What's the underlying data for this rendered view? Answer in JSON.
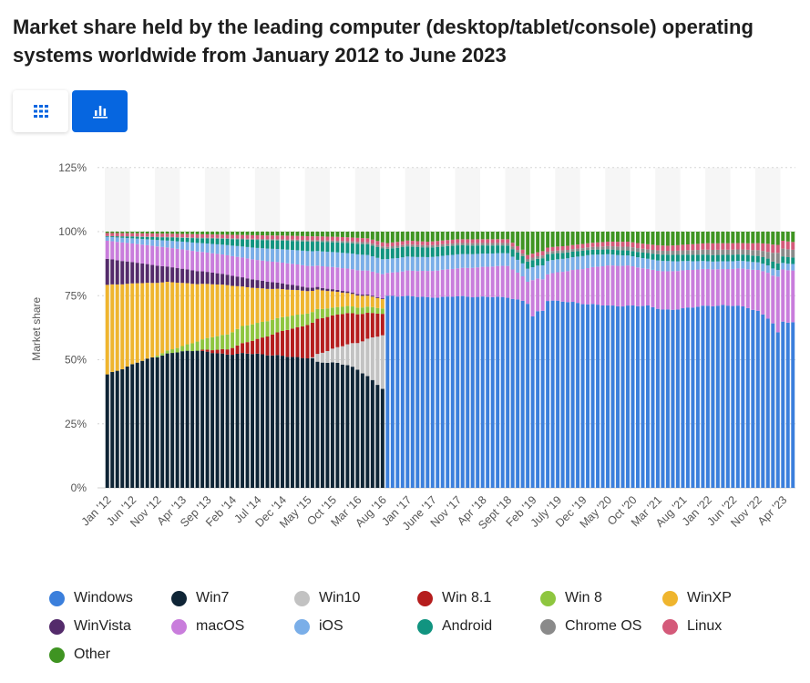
{
  "title": "Market share held by the leading computer (desktop/tablet/console) operating systems worldwide from January 2012 to June 2023",
  "toolbar": {
    "table_icon": "grid-icon",
    "chart_icon": "bar-chart-icon"
  },
  "colors": {
    "Windows": "#3b7fdc",
    "Win7": "#0f2536",
    "Win10": "#c2c2c2",
    "Win 8.1": "#b51d1d",
    "Win 8": "#8ec63f",
    "WinXP": "#efb52e",
    "WinVista": "#542b6b",
    "macOS": "#c97ddc",
    "iOS": "#7aaee8",
    "Android": "#119480",
    "Chrome OS": "#8a8a8a",
    "Linux": "#d45a7a",
    "Other": "#3f9422"
  },
  "chart_data": {
    "type": "bar",
    "stacked": true,
    "ylabel": "Market share",
    "ylim": [
      0,
      125
    ],
    "yticks": [
      "0%",
      "25%",
      "50%",
      "75%",
      "100%",
      "125%"
    ],
    "x_start": "Jan 2012",
    "x_end": "Jun 2023",
    "period": "monthly",
    "xtick_labels": [
      "Jan '12",
      "Jun '12",
      "Nov '12",
      "Apr '13",
      "Sep '13",
      "Feb '14",
      "Jul '14",
      "Dec '14",
      "May '15",
      "Oct '15",
      "Mar '16",
      "Aug '16",
      "Jan '17",
      "June '17",
      "Nov '17",
      "Apr '18",
      "Sept '18",
      "Feb '19",
      "July '19",
      "Dec '19",
      "May '20",
      "Oct '20",
      "Mar '21",
      "Aug '21",
      "Jan '22",
      "Jun '22",
      "Nov '22",
      "Apr '23"
    ],
    "legend_position": "bottom",
    "series": [
      {
        "name": "Windows",
        "points": [
          [
            55,
            0
          ],
          [
            56,
            75
          ],
          [
            60,
            75.5
          ],
          [
            70,
            75
          ],
          [
            80,
            75.5
          ],
          [
            84,
            71
          ],
          [
            85,
            66
          ],
          [
            86,
            68
          ],
          [
            87,
            64
          ],
          [
            88,
            71
          ],
          [
            93,
            72.5
          ],
          [
            96,
            71
          ],
          [
            100,
            73
          ],
          [
            103,
            72
          ],
          [
            108,
            72
          ],
          [
            111,
            68.5
          ],
          [
            116,
            70.5
          ],
          [
            121,
            70.5
          ],
          [
            126,
            71
          ],
          [
            130,
            69
          ],
          [
            133,
            60
          ],
          [
            134,
            58
          ],
          [
            135,
            64
          ],
          [
            137,
            64
          ]
        ]
      },
      {
        "name": "Win7",
        "points": [
          [
            0,
            43.5
          ],
          [
            6,
            49
          ],
          [
            12,
            52.5
          ],
          [
            18,
            53
          ],
          [
            24,
            51.5
          ],
          [
            30,
            50
          ],
          [
            36,
            49
          ],
          [
            42,
            48
          ],
          [
            46,
            48
          ],
          [
            48,
            47
          ],
          [
            52,
            42
          ],
          [
            55,
            37
          ],
          [
            56,
            0
          ],
          [
            137,
            0
          ]
        ]
      },
      {
        "name": "Win10",
        "points": [
          [
            0,
            0
          ],
          [
            40,
            0
          ],
          [
            41,
            0.3
          ],
          [
            42,
            3
          ],
          [
            46,
            6
          ],
          [
            50,
            10
          ],
          [
            55,
            20
          ],
          [
            56,
            0
          ],
          [
            137,
            0
          ]
        ]
      },
      {
        "name": "Win 8.1",
        "points": [
          [
            0,
            0
          ],
          [
            18,
            0
          ],
          [
            19,
            0.5
          ],
          [
            24,
            2
          ],
          [
            30,
            5.5
          ],
          [
            36,
            10
          ],
          [
            42,
            13.5
          ],
          [
            48,
            12
          ],
          [
            55,
            8
          ],
          [
            56,
            0
          ],
          [
            137,
            0
          ]
        ]
      },
      {
        "name": "Win 8",
        "points": [
          [
            0,
            0
          ],
          [
            9,
            0
          ],
          [
            10,
            0.6
          ],
          [
            15,
            2
          ],
          [
            21,
            5
          ],
          [
            27,
            6.5
          ],
          [
            33,
            5.5
          ],
          [
            39,
            4.5
          ],
          [
            45,
            3
          ],
          [
            50,
            2.5
          ],
          [
            55,
            2
          ],
          [
            56,
            0
          ],
          [
            137,
            0
          ]
        ]
      },
      {
        "name": "WinXP",
        "points": [
          [
            0,
            34.5
          ],
          [
            6,
            31
          ],
          [
            12,
            27
          ],
          [
            18,
            22
          ],
          [
            24,
            19
          ],
          [
            27,
            15
          ],
          [
            30,
            13
          ],
          [
            36,
            10
          ],
          [
            42,
            7.5
          ],
          [
            48,
            5
          ],
          [
            55,
            3.5
          ],
          [
            56,
            0
          ],
          [
            137,
            0
          ]
        ]
      },
      {
        "name": "WinVista",
        "points": [
          [
            0,
            10
          ],
          [
            6,
            8
          ],
          [
            12,
            6
          ],
          [
            18,
            5
          ],
          [
            24,
            4
          ],
          [
            30,
            3
          ],
          [
            36,
            2
          ],
          [
            42,
            1
          ],
          [
            48,
            0.6
          ],
          [
            55,
            0.3
          ],
          [
            56,
            0
          ],
          [
            137,
            0
          ]
        ]
      },
      {
        "name": "macOS",
        "points": [
          [
            0,
            7
          ],
          [
            10,
            7.5
          ],
          [
            20,
            7.5
          ],
          [
            30,
            7.5
          ],
          [
            40,
            8
          ],
          [
            50,
            9
          ],
          [
            56,
            9
          ],
          [
            60,
            10
          ],
          [
            70,
            11
          ],
          [
            80,
            12.5
          ],
          [
            84,
            8.5
          ],
          [
            85,
            14
          ],
          [
            88,
            10
          ],
          [
            93,
            12.5
          ],
          [
            100,
            16
          ],
          [
            104,
            16
          ],
          [
            108,
            14.5
          ],
          [
            113,
            15
          ],
          [
            118,
            14.5
          ],
          [
            123,
            14
          ],
          [
            128,
            15
          ],
          [
            133,
            17.5
          ],
          [
            134,
            21
          ],
          [
            135,
            20
          ],
          [
            137,
            20
          ]
        ]
      },
      {
        "name": "iOS",
        "points": [
          [
            0,
            1.5
          ],
          [
            10,
            2.5
          ],
          [
            20,
            3.5
          ],
          [
            30,
            4.5
          ],
          [
            40,
            5.5
          ],
          [
            50,
            6
          ],
          [
            56,
            5.5
          ],
          [
            60,
            5.5
          ],
          [
            70,
            5.5
          ],
          [
            80,
            5
          ],
          [
            88,
            5
          ],
          [
            96,
            5
          ],
          [
            104,
            4
          ],
          [
            112,
            4
          ],
          [
            120,
            3
          ],
          [
            130,
            3
          ],
          [
            134,
            2.5
          ],
          [
            137,
            2.5
          ]
        ]
      },
      {
        "name": "Android",
        "points": [
          [
            0,
            0.3
          ],
          [
            15,
            1.5
          ],
          [
            30,
            3
          ],
          [
            40,
            3.5
          ],
          [
            50,
            4
          ],
          [
            56,
            4
          ],
          [
            60,
            4
          ],
          [
            70,
            3.5
          ],
          [
            80,
            3
          ],
          [
            88,
            2.5
          ],
          [
            96,
            2
          ],
          [
            104,
            2
          ],
          [
            112,
            2.5
          ],
          [
            120,
            2.5
          ],
          [
            130,
            2.5
          ],
          [
            137,
            2.5
          ]
        ]
      },
      {
        "name": "Chrome OS",
        "points": [
          [
            0,
            0
          ],
          [
            12,
            0.2
          ],
          [
            24,
            0.3
          ],
          [
            36,
            0.5
          ],
          [
            48,
            0.7
          ],
          [
            56,
            0.8
          ],
          [
            70,
            0.9
          ],
          [
            80,
            1
          ],
          [
            96,
            1
          ],
          [
            104,
            1.5
          ],
          [
            112,
            1.5
          ],
          [
            120,
            2
          ],
          [
            128,
            2
          ],
          [
            132,
            2.5
          ],
          [
            134,
            4
          ],
          [
            135,
            3
          ],
          [
            137,
            3
          ]
        ]
      },
      {
        "name": "Linux",
        "points": [
          [
            0,
            1.2
          ],
          [
            24,
            1.3
          ],
          [
            48,
            1.5
          ],
          [
            56,
            1.5
          ],
          [
            70,
            1.5
          ],
          [
            80,
            1.5
          ],
          [
            96,
            1.6
          ],
          [
            104,
            2
          ],
          [
            112,
            2
          ],
          [
            120,
            2.5
          ],
          [
            128,
            2.5
          ],
          [
            132,
            3
          ],
          [
            137,
            3
          ]
        ]
      },
      {
        "name": "Other",
        "points": [
          [
            0,
            0.5
          ],
          [
            12,
            0.8
          ],
          [
            24,
            1.2
          ],
          [
            36,
            1.5
          ],
          [
            46,
            2
          ],
          [
            52,
            2.5
          ],
          [
            56,
            4.5
          ],
          [
            60,
            3.5
          ],
          [
            64,
            4
          ],
          [
            70,
            3
          ],
          [
            80,
            3
          ],
          [
            83,
            7
          ],
          [
            84,
            9
          ],
          [
            86,
            8
          ],
          [
            88,
            6
          ],
          [
            92,
            5.5
          ],
          [
            96,
            4.5
          ],
          [
            100,
            4
          ],
          [
            104,
            4
          ],
          [
            108,
            5
          ],
          [
            112,
            5.5
          ],
          [
            116,
            5
          ],
          [
            120,
            4.5
          ],
          [
            124,
            4.5
          ],
          [
            128,
            4.5
          ],
          [
            132,
            4.5
          ],
          [
            134,
            5
          ],
          [
            135,
            3.5
          ],
          [
            137,
            4
          ]
        ]
      }
    ]
  },
  "legend": [
    "Windows",
    "Win7",
    "Win10",
    "Win 8.1",
    "Win 8",
    "WinXP",
    "WinVista",
    "macOS",
    "iOS",
    "Android",
    "Chrome OS",
    "Linux",
    "Other"
  ]
}
